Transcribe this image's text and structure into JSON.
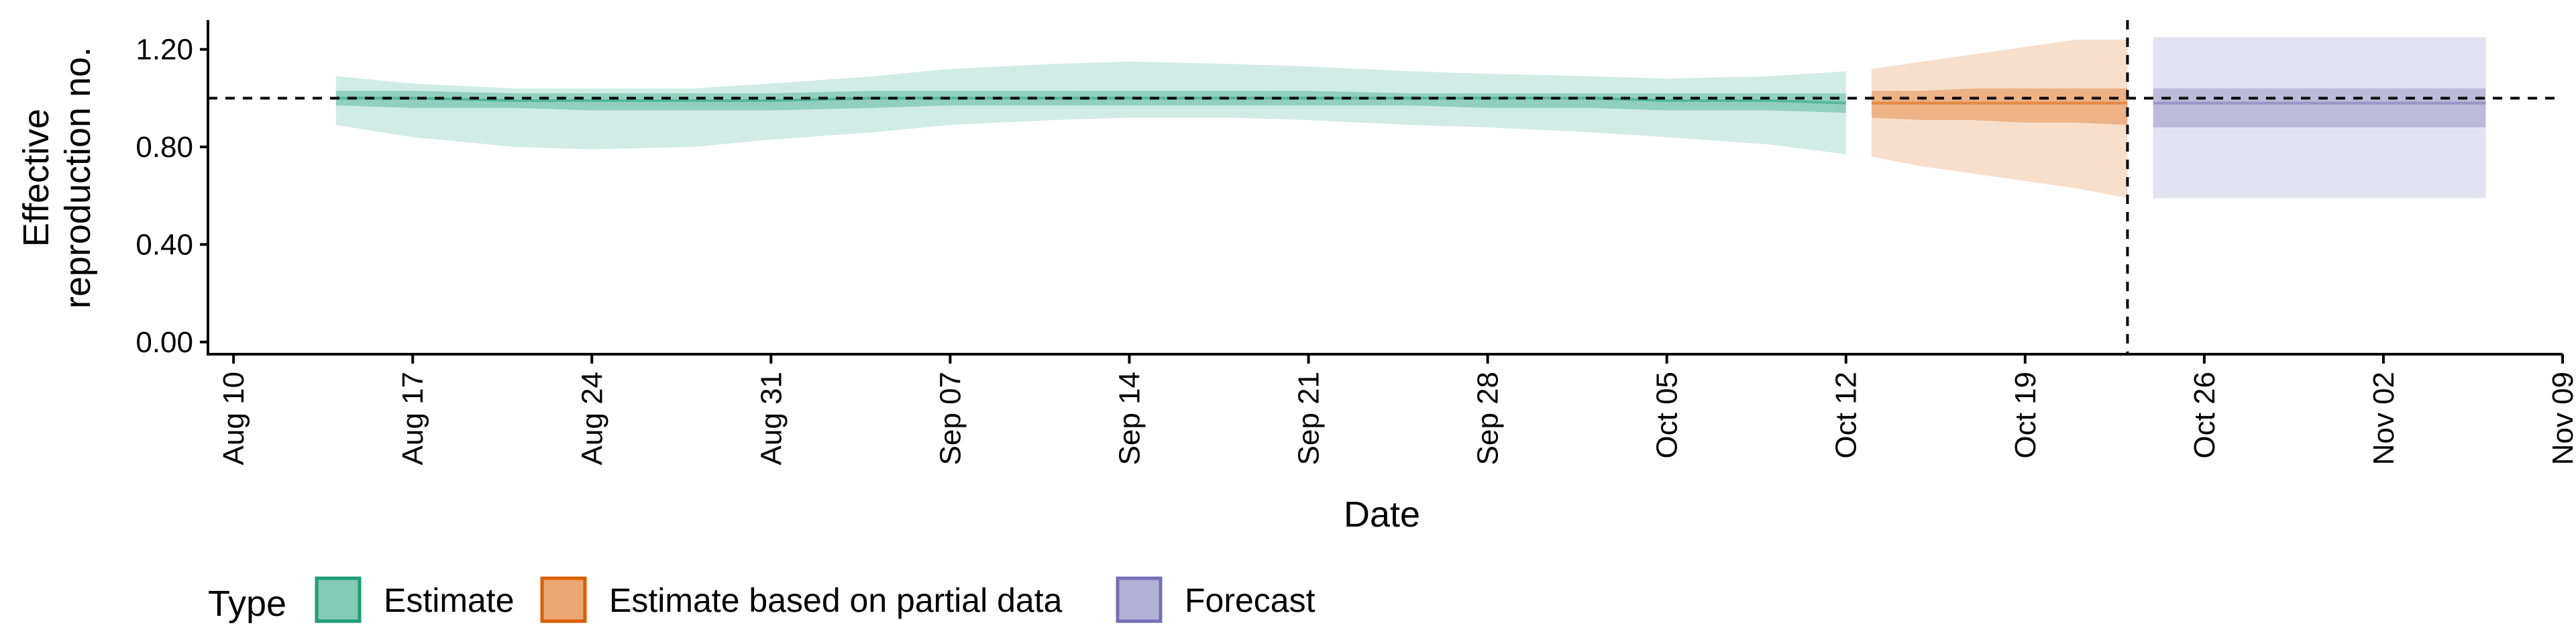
{
  "chart_data": {
    "type": "area",
    "xlabel": "Date",
    "ylabel": [
      "Effective",
      "reproduction no."
    ],
    "yticks": [
      "0.00",
      "0.40",
      "0.80",
      "1.20"
    ],
    "ytick_values": [
      0,
      0.4,
      0.8,
      1.2
    ],
    "ylim": [
      -0.05,
      1.32
    ],
    "x_domain": [
      "2021-08-09",
      "2021-11-09"
    ],
    "xticks": [
      {
        "date": "2021-08-10",
        "label": "Aug 10"
      },
      {
        "date": "2021-08-17",
        "label": "Aug 17"
      },
      {
        "date": "2021-08-24",
        "label": "Aug 24"
      },
      {
        "date": "2021-08-31",
        "label": "Aug 31"
      },
      {
        "date": "2021-09-07",
        "label": "Sep 07"
      },
      {
        "date": "2021-09-14",
        "label": "Sep 14"
      },
      {
        "date": "2021-09-21",
        "label": "Sep 21"
      },
      {
        "date": "2021-09-28",
        "label": "Sep 28"
      },
      {
        "date": "2021-10-05",
        "label": "Oct 05"
      },
      {
        "date": "2021-10-12",
        "label": "Oct 12"
      },
      {
        "date": "2021-10-19",
        "label": "Oct 19"
      },
      {
        "date": "2021-10-26",
        "label": "Oct 26"
      },
      {
        "date": "2021-11-02",
        "label": "Nov 02"
      },
      {
        "date": "2021-11-09",
        "label": "Nov 09"
      }
    ],
    "reference_line_y": 1.0,
    "vertical_line_date": "2021-10-23",
    "legend": {
      "title": "Type",
      "position": "bottom-left",
      "items": [
        "Estimate",
        "Estimate based on partial data",
        "Forecast"
      ]
    },
    "series": [
      {
        "name": "Estimate",
        "color": "#1b9e77",
        "dates": [
          "2021-08-14",
          "2021-08-17",
          "2021-08-21",
          "2021-08-24",
          "2021-08-28",
          "2021-08-31",
          "2021-09-04",
          "2021-09-07",
          "2021-09-11",
          "2021-09-14",
          "2021-09-18",
          "2021-09-21",
          "2021-09-25",
          "2021-09-28",
          "2021-10-02",
          "2021-10-05",
          "2021-10-09",
          "2021-10-12"
        ],
        "median": [
          1.0,
          1.0,
          0.99,
          0.99,
          0.99,
          0.99,
          1.0,
          1.0,
          1.0,
          1.0,
          1.0,
          1.0,
          1.0,
          1.0,
          1.0,
          0.99,
          0.99,
          0.98
        ],
        "lower_50": [
          0.97,
          0.96,
          0.96,
          0.95,
          0.95,
          0.95,
          0.96,
          0.97,
          0.97,
          0.97,
          0.97,
          0.97,
          0.97,
          0.96,
          0.96,
          0.95,
          0.95,
          0.94
        ],
        "upper_50": [
          1.03,
          1.03,
          1.02,
          1.02,
          1.02,
          1.02,
          1.03,
          1.03,
          1.03,
          1.03,
          1.03,
          1.03,
          1.02,
          1.02,
          1.02,
          1.02,
          1.02,
          1.02
        ],
        "lower_90": [
          0.89,
          0.84,
          0.8,
          0.79,
          0.8,
          0.83,
          0.86,
          0.89,
          0.91,
          0.92,
          0.92,
          0.91,
          0.89,
          0.88,
          0.86,
          0.84,
          0.81,
          0.77
        ],
        "upper_90": [
          1.09,
          1.06,
          1.04,
          1.04,
          1.04,
          1.06,
          1.09,
          1.12,
          1.14,
          1.15,
          1.14,
          1.13,
          1.11,
          1.1,
          1.09,
          1.08,
          1.09,
          1.11
        ]
      },
      {
        "name": "Estimate based on partial data",
        "color": "#d95f02",
        "dates": [
          "2021-10-13",
          "2021-10-15",
          "2021-10-17",
          "2021-10-19",
          "2021-10-21",
          "2021-10-23"
        ],
        "median": [
          0.98,
          0.98,
          0.98,
          0.98,
          0.98,
          0.98
        ],
        "lower_50": [
          0.92,
          0.91,
          0.91,
          0.9,
          0.9,
          0.89
        ],
        "upper_50": [
          1.03,
          1.03,
          1.04,
          1.04,
          1.04,
          1.04
        ],
        "lower_90": [
          0.76,
          0.72,
          0.69,
          0.66,
          0.63,
          0.59
        ],
        "upper_90": [
          1.12,
          1.15,
          1.18,
          1.21,
          1.24,
          1.24
        ]
      },
      {
        "name": "Forecast",
        "color": "#7570b3",
        "dates": [
          "2021-10-24",
          "2021-11-06"
        ],
        "median": [
          0.98,
          0.98
        ],
        "lower_50": [
          0.88,
          0.88
        ],
        "upper_50": [
          1.04,
          1.04
        ],
        "lower_90": [
          0.59,
          0.59
        ],
        "upper_90": [
          1.25,
          1.25
        ]
      }
    ]
  }
}
